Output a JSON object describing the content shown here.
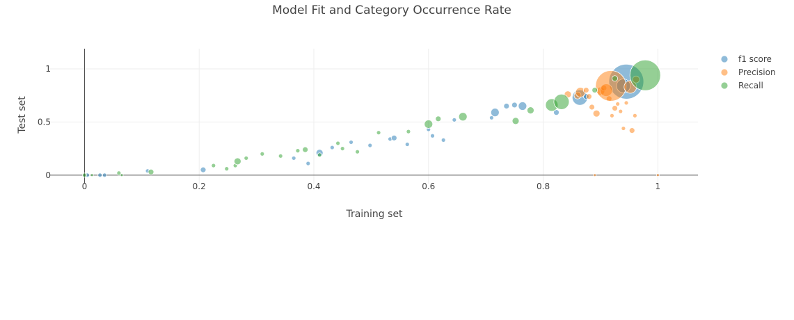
{
  "chart_data": {
    "type": "scatter",
    "title": "Model Fit and Category Occurrence Rate",
    "xlabel": "Training set",
    "ylabel": "Test set",
    "xlim": [
      -0.06,
      1.07
    ],
    "ylim": [
      -0.08,
      1.19
    ],
    "x_ticks": [
      0,
      0.2,
      0.4,
      0.6,
      0.8,
      1
    ],
    "x_tick_labels": [
      "0",
      "0.2",
      "0.4",
      "0.6",
      "0.8",
      "1"
    ],
    "y_ticks": [
      0,
      0.5,
      1
    ],
    "y_tick_labels": [
      "0",
      "0.5",
      "1"
    ],
    "grid": true,
    "legend_position": "top-right",
    "series": [
      {
        "name": "f1 score",
        "color": "#1f77b4",
        "points": [
          {
            "x": 0.005,
            "y": 0.0,
            "s": 3
          },
          {
            "x": 0.027,
            "y": 0.0,
            "s": 3
          },
          {
            "x": 0.035,
            "y": 0.0,
            "s": 3
          },
          {
            "x": 0.11,
            "y": 0.04,
            "s": 3
          },
          {
            "x": 0.207,
            "y": 0.05,
            "s": 4
          },
          {
            "x": 0.365,
            "y": 0.16,
            "s": 3
          },
          {
            "x": 0.39,
            "y": 0.11,
            "s": 3
          },
          {
            "x": 0.41,
            "y": 0.21,
            "s": 5
          },
          {
            "x": 0.432,
            "y": 0.26,
            "s": 3
          },
          {
            "x": 0.465,
            "y": 0.31,
            "s": 3
          },
          {
            "x": 0.498,
            "y": 0.28,
            "s": 3
          },
          {
            "x": 0.533,
            "y": 0.34,
            "s": 3
          },
          {
            "x": 0.54,
            "y": 0.35,
            "s": 4
          },
          {
            "x": 0.563,
            "y": 0.29,
            "s": 3
          },
          {
            "x": 0.6,
            "y": 0.43,
            "s": 3
          },
          {
            "x": 0.607,
            "y": 0.37,
            "s": 3
          },
          {
            "x": 0.626,
            "y": 0.33,
            "s": 3
          },
          {
            "x": 0.645,
            "y": 0.52,
            "s": 3
          },
          {
            "x": 0.71,
            "y": 0.54,
            "s": 3
          },
          {
            "x": 0.716,
            "y": 0.59,
            "s": 6
          },
          {
            "x": 0.736,
            "y": 0.65,
            "s": 4
          },
          {
            "x": 0.75,
            "y": 0.66,
            "s": 4
          },
          {
            "x": 0.764,
            "y": 0.65,
            "s": 6
          },
          {
            "x": 0.823,
            "y": 0.59,
            "s": 4
          },
          {
            "x": 0.864,
            "y": 0.73,
            "s": 11
          },
          {
            "x": 0.875,
            "y": 0.74,
            "s": 4
          },
          {
            "x": 0.945,
            "y": 0.88,
            "s": 25
          },
          {
            "x": 0.94,
            "y": 0.84,
            "s": 10
          }
        ]
      },
      {
        "name": "Precision",
        "color": "#ff7f0e",
        "points": [
          {
            "x": 0.843,
            "y": 0.76,
            "s": 5
          },
          {
            "x": 0.86,
            "y": 0.75,
            "s": 5
          },
          {
            "x": 0.865,
            "y": 0.78,
            "s": 7
          },
          {
            "x": 0.875,
            "y": 0.8,
            "s": 4
          },
          {
            "x": 0.88,
            "y": 0.74,
            "s": 4
          },
          {
            "x": 0.885,
            "y": 0.64,
            "s": 4
          },
          {
            "x": 0.893,
            "y": 0.58,
            "s": 5
          },
          {
            "x": 0.9,
            "y": 0.79,
            "s": 6
          },
          {
            "x": 0.906,
            "y": 0.82,
            "s": 4
          },
          {
            "x": 0.91,
            "y": 0.8,
            "s": 9
          },
          {
            "x": 0.915,
            "y": 0.72,
            "s": 4
          },
          {
            "x": 0.918,
            "y": 0.84,
            "s": 22
          },
          {
            "x": 0.92,
            "y": 0.56,
            "s": 3
          },
          {
            "x": 0.925,
            "y": 0.63,
            "s": 4
          },
          {
            "x": 0.93,
            "y": 0.67,
            "s": 3
          },
          {
            "x": 0.935,
            "y": 0.6,
            "s": 3
          },
          {
            "x": 0.94,
            "y": 0.44,
            "s": 3
          },
          {
            "x": 0.945,
            "y": 0.68,
            "s": 3
          },
          {
            "x": 0.952,
            "y": 0.83,
            "s": 9
          },
          {
            "x": 0.955,
            "y": 0.42,
            "s": 4
          },
          {
            "x": 0.96,
            "y": 0.56,
            "s": 3
          },
          {
            "x": 0.962,
            "y": 0.9,
            "s": 5
          },
          {
            "x": 0.89,
            "y": 0.0,
            "s": 2
          },
          {
            "x": 1.0,
            "y": 0.0,
            "s": 2
          }
        ]
      },
      {
        "name": "Recall",
        "color": "#2ca02c",
        "points": [
          {
            "x": 0.0,
            "y": 0.0,
            "s": 3
          },
          {
            "x": 0.013,
            "y": 0.0,
            "s": 2
          },
          {
            "x": 0.06,
            "y": 0.02,
            "s": 3
          },
          {
            "x": 0.065,
            "y": 0.0,
            "s": 2
          },
          {
            "x": 0.116,
            "y": 0.03,
            "s": 4
          },
          {
            "x": 0.225,
            "y": 0.09,
            "s": 3
          },
          {
            "x": 0.248,
            "y": 0.06,
            "s": 3
          },
          {
            "x": 0.263,
            "y": 0.09,
            "s": 3
          },
          {
            "x": 0.267,
            "y": 0.13,
            "s": 5
          },
          {
            "x": 0.282,
            "y": 0.16,
            "s": 3
          },
          {
            "x": 0.31,
            "y": 0.2,
            "s": 3
          },
          {
            "x": 0.342,
            "y": 0.18,
            "s": 3
          },
          {
            "x": 0.372,
            "y": 0.23,
            "s": 3
          },
          {
            "x": 0.385,
            "y": 0.24,
            "s": 4
          },
          {
            "x": 0.41,
            "y": 0.19,
            "s": 3
          },
          {
            "x": 0.442,
            "y": 0.3,
            "s": 3
          },
          {
            "x": 0.45,
            "y": 0.25,
            "s": 3
          },
          {
            "x": 0.476,
            "y": 0.22,
            "s": 3
          },
          {
            "x": 0.513,
            "y": 0.4,
            "s": 3
          },
          {
            "x": 0.565,
            "y": 0.41,
            "s": 3
          },
          {
            "x": 0.6,
            "y": 0.48,
            "s": 6
          },
          {
            "x": 0.617,
            "y": 0.53,
            "s": 4
          },
          {
            "x": 0.66,
            "y": 0.55,
            "s": 6
          },
          {
            "x": 0.752,
            "y": 0.51,
            "s": 5
          },
          {
            "x": 0.778,
            "y": 0.61,
            "s": 5
          },
          {
            "x": 0.815,
            "y": 0.66,
            "s": 9
          },
          {
            "x": 0.832,
            "y": 0.69,
            "s": 11
          },
          {
            "x": 0.89,
            "y": 0.8,
            "s": 4
          },
          {
            "x": 0.925,
            "y": 0.91,
            "s": 4
          },
          {
            "x": 0.978,
            "y": 0.94,
            "s": 22
          }
        ]
      }
    ]
  }
}
